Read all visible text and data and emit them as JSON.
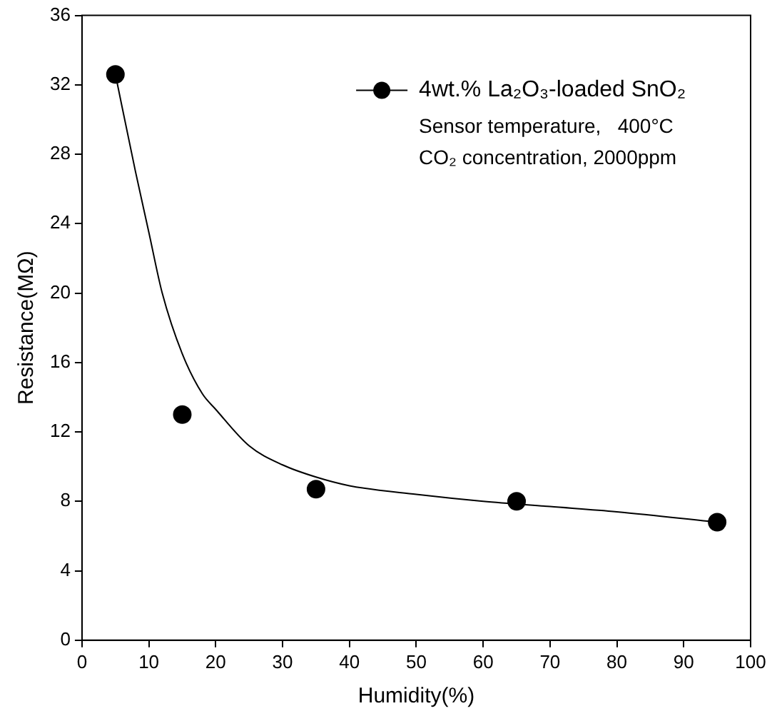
{
  "chart_data": {
    "type": "scatter",
    "xlabel": "Humidity(%)",
    "ylabel": "Resistance(MΩ)",
    "xlim": [
      0,
      100
    ],
    "xticks": [
      0,
      10,
      20,
      30,
      40,
      50,
      60,
      70,
      80,
      90,
      100
    ],
    "ylim": [
      0,
      36
    ],
    "yticks": [
      0,
      4,
      8,
      12,
      16,
      20,
      24,
      28,
      32,
      36
    ],
    "grid": false,
    "legend": "top right",
    "series": [
      {
        "name": "4wt.% La₂O₃-loaded SnO₂",
        "color": "#000000",
        "marker": "circle",
        "x": [
          5,
          15,
          35,
          65,
          95
        ],
        "values": [
          32.6,
          13,
          8.7,
          8,
          6.8
        ]
      },
      {
        "type": "line",
        "color": "#000000",
        "marker": "none",
        "x": [
          5,
          8,
          10,
          12,
          15,
          18,
          20,
          25,
          30,
          35,
          40,
          50,
          60,
          70,
          80,
          95
        ],
        "values": [
          32.6,
          27,
          23.5,
          20,
          16.5,
          14.2,
          13.3,
          11.2,
          10.1,
          9.4,
          8.9,
          8.4,
          8.0,
          7.7,
          7.4,
          6.8
        ]
      }
    ],
    "annotations": [
      "Sensor temperature,   400°C",
      "CO₂ concentration, 2000ppm"
    ]
  }
}
